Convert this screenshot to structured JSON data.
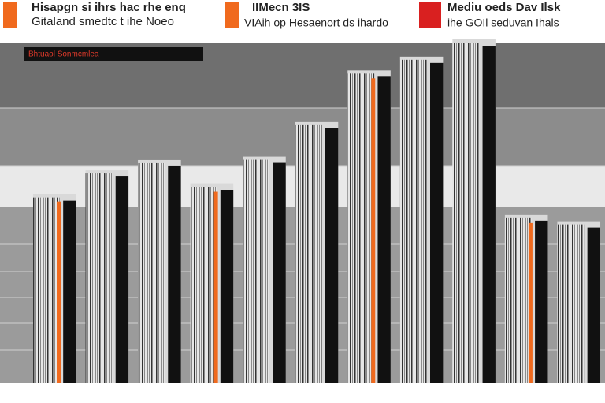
{
  "chart_data": {
    "type": "bar",
    "texts": [
      "Hisapgn si ihrs hac rhe enq",
      "Gitaland smedtc t ihe Noeo",
      "IIMecn 3IS",
      "VIAih op Hesaenort ds ihardo",
      "Mediu oeds Dav Ilsk",
      "ihe GOIl seduvan Ihals",
      "Bhtuaol Sonmcmlea"
    ],
    "categories": [
      null,
      null,
      null,
      null,
      null,
      null,
      null,
      null,
      null,
      null,
      null
    ],
    "values": [
      55,
      62,
      65,
      58,
      66,
      76,
      91,
      95,
      100,
      49,
      47
    ],
    "color": "#d9d9d9",
    "edge_color": "#111111",
    "accent_color": "#f06a1e",
    "ylim": [
      0,
      100
    ]
  }
}
